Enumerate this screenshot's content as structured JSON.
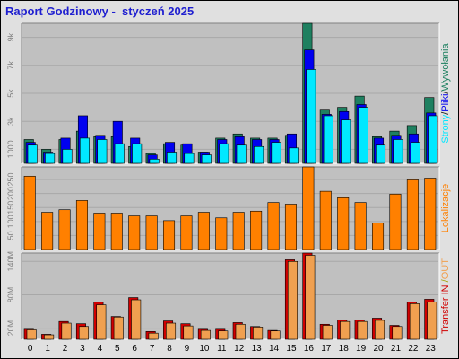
{
  "title": "Raport Godzinowy -  styczeń 2025",
  "colors": {
    "background": "#e0e0e0",
    "plot_bg": "#c0c0c0",
    "strony": "#1e8060",
    "pliki": "#0000f0",
    "wywolania": "#00e8ff",
    "lokalizacje": "#ff8000",
    "transfer_in": "#d00000",
    "transfer_out": "#f0a050"
  },
  "chart_data": [
    {
      "type": "bar",
      "title": "",
      "categories": [
        "0",
        "1",
        "2",
        "3",
        "4",
        "5",
        "6",
        "7",
        "8",
        "9",
        "10",
        "11",
        "12",
        "13",
        "14",
        "15",
        "16",
        "17",
        "18",
        "19",
        "20",
        "21",
        "22",
        "23"
      ],
      "ylim": [
        0,
        10000
      ],
      "y_ticks": [
        "1000",
        "3k",
        "5k",
        "7k",
        "9k"
      ],
      "y_tick_values": [
        1000,
        3000,
        5000,
        7000,
        9000
      ],
      "side_label_parts": [
        "Strony",
        "/",
        "Pliki",
        "/",
        "Wywołania"
      ],
      "series": [
        {
          "name": "Strony",
          "values": [
            1700,
            1000,
            1700,
            2300,
            1900,
            1900,
            1200,
            700,
            1400,
            1300,
            800,
            1800,
            2100,
            1800,
            1800,
            2000,
            10000,
            3800,
            4000,
            4800,
            1900,
            2300,
            2700,
            4700
          ]
        },
        {
          "name": "Pliki",
          "values": [
            1500,
            800,
            1800,
            3400,
            2000,
            3000,
            1800,
            600,
            1500,
            1400,
            800,
            1700,
            1900,
            1700,
            1700,
            2100,
            8100,
            3500,
            3700,
            4200,
            1800,
            2000,
            2100,
            3600
          ]
        },
        {
          "name": "Wywołania",
          "values": [
            1300,
            700,
            1000,
            1800,
            1700,
            1400,
            1400,
            300,
            800,
            700,
            600,
            1400,
            1300,
            1200,
            1500,
            1100,
            6700,
            3400,
            3100,
            4000,
            1300,
            1700,
            1500,
            3400
          ]
        }
      ]
    },
    {
      "type": "bar",
      "title": "",
      "categories": [
        "0",
        "1",
        "2",
        "3",
        "4",
        "5",
        "6",
        "7",
        "8",
        "9",
        "10",
        "11",
        "12",
        "13",
        "14",
        "15",
        "16",
        "17",
        "18",
        "19",
        "20",
        "21",
        "22",
        "23"
      ],
      "ylim": [
        0,
        295
      ],
      "y_ticks": [
        "50",
        "100",
        "150",
        "200",
        "250"
      ],
      "y_tick_values": [
        50,
        100,
        150,
        200,
        250
      ],
      "side_label_parts": [
        "Lokalizacje"
      ],
      "series": [
        {
          "name": "Lokalizacje",
          "values": [
            262,
            133,
            142,
            175,
            130,
            130,
            120,
            120,
            103,
            120,
            133,
            113,
            133,
            137,
            168,
            162,
            295,
            208,
            185,
            168,
            95,
            198,
            252,
            255
          ]
        }
      ]
    },
    {
      "type": "bar",
      "title": "",
      "categories": [
        "0",
        "1",
        "2",
        "3",
        "4",
        "5",
        "6",
        "7",
        "8",
        "9",
        "10",
        "11",
        "12",
        "13",
        "14",
        "15",
        "16",
        "17",
        "18",
        "19",
        "20",
        "21",
        "22",
        "23"
      ],
      "ylim": [
        0,
        155
      ],
      "y_ticks": [
        "20M",
        "80M",
        "140M"
      ],
      "y_tick_values": [
        20,
        80,
        140
      ],
      "y_unit": "M",
      "side_label_parts": [
        "Transfer",
        " IN",
        " /",
        "OUT"
      ],
      "series": [
        {
          "name": "Transfer IN",
          "values": [
            18,
            9,
            32,
            28,
            67,
            41,
            75,
            14,
            33,
            28,
            18,
            18,
            30,
            23,
            16,
            143,
            155,
            27,
            35,
            35,
            38,
            25,
            67,
            72
          ]
        },
        {
          "name": "Transfer OUT",
          "values": [
            17,
            8,
            29,
            23,
            62,
            40,
            71,
            11,
            29,
            24,
            16,
            15,
            27,
            22,
            15,
            140,
            151,
            25,
            32,
            32,
            34,
            23,
            64,
            67
          ]
        }
      ]
    }
  ]
}
